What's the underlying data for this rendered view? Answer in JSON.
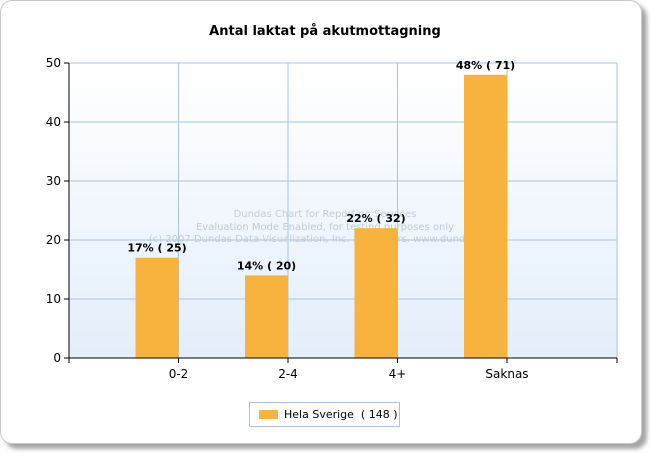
{
  "chart_data": {
    "type": "bar",
    "title": "Antal laktat på akutmottagning",
    "categories": [
      "0-2",
      "2-4",
      "4+",
      "Saknas"
    ],
    "series": [
      {
        "name": "Hela Sverige  ( 148 )",
        "values": [
          17,
          14,
          22,
          48
        ],
        "data_labels": [
          "17% ( 25)",
          "14% ( 20)",
          "22% ( 32)",
          "48% ( 71)"
        ],
        "color": "#f7b33e"
      }
    ],
    "ylim": [
      0,
      50
    ],
    "yticks": [
      "0",
      "10",
      "20",
      "30",
      "40",
      "50"
    ],
    "xlabel": "",
    "ylabel": "",
    "grid": true,
    "legend_position": "bottom-center"
  },
  "watermark": [
    "Dundas Chart for Reporting Services",
    "Evaluation Mode Enabled, for testing purposes only",
    "(c) 2007 Dundas Data Visualization, Inc. and others. www.dundas.com"
  ],
  "colors": {
    "bar": "#f7b33e",
    "plot_top": "#ffffff",
    "plot_bottom": "#e3eefa",
    "grid": "#a9c4dc"
  }
}
